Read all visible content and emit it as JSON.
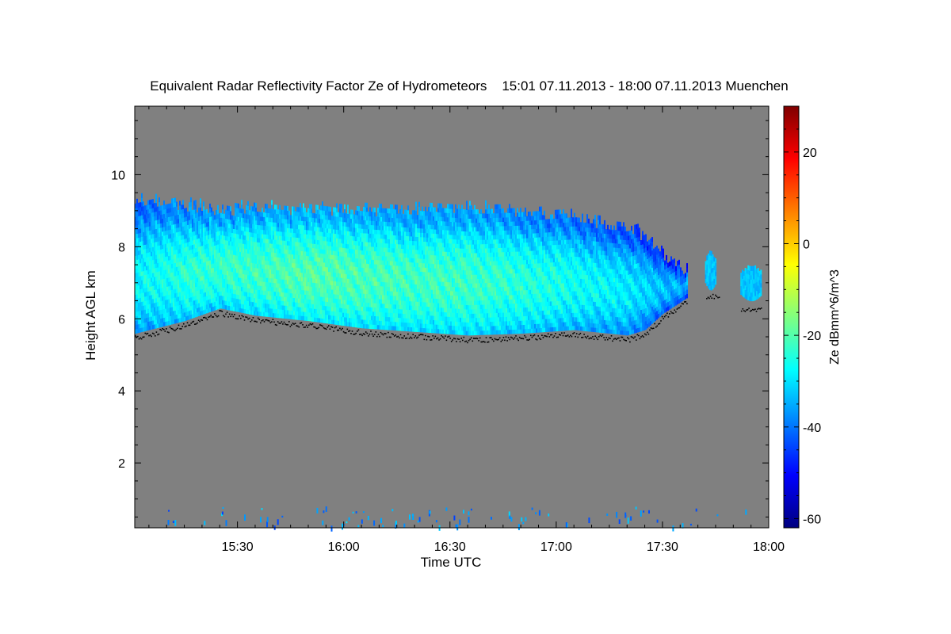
{
  "chart_data": {
    "type": "heatmap",
    "title": "Equivalent Radar Reflectivity Factor Ze of Hydrometeors    15:01 07.11.2013 - 18:00 07.11.2013 Muenchen",
    "xlabel": "Time UTC",
    "ylabel": "Height AGL km",
    "colorbar_label": "Ze dBmm^6/m^3",
    "x_range": [
      "15:01",
      "18:00"
    ],
    "ylim": [
      0.2,
      11.9
    ],
    "x_ticks": [
      {
        "label": "15:30",
        "minutes": 30
      },
      {
        "label": "16:00",
        "minutes": 60
      },
      {
        "label": "16:30",
        "minutes": 90
      },
      {
        "label": "17:00",
        "minutes": 120
      },
      {
        "label": "17:30",
        "minutes": 150
      },
      {
        "label": "18:00",
        "minutes": 180
      }
    ],
    "y_ticks": [
      {
        "label": "2",
        "value": 2
      },
      {
        "label": "4",
        "value": 4
      },
      {
        "label": "6",
        "value": 6
      },
      {
        "label": "8",
        "value": 8
      },
      {
        "label": "10",
        "value": 10
      }
    ],
    "colorbar_range": [
      -62,
      30
    ],
    "colorbar_ticks": [
      {
        "label": "-60",
        "value": -60
      },
      {
        "label": "-40",
        "value": -40
      },
      {
        "label": "-20",
        "value": -20
      },
      {
        "label": "0",
        "value": 0
      },
      {
        "label": "20",
        "value": 20
      }
    ],
    "background_color": "#808080",
    "colormap": [
      "#00007f",
      "#0000ff",
      "#0080ff",
      "#00ffff",
      "#80ff80",
      "#ffff00",
      "#ff8000",
      "#ff0000",
      "#7f0000"
    ],
    "cloud_layer": {
      "description_points": [
        {
          "t": 1,
          "base_km": 5.6,
          "top_km": 9.3,
          "core_ze": -28
        },
        {
          "t": 15,
          "base_km": 5.95,
          "top_km": 9.1,
          "core_ze": -24
        },
        {
          "t": 25,
          "base_km": 6.3,
          "top_km": 9.0,
          "core_ze": -23
        },
        {
          "t": 35,
          "base_km": 6.1,
          "top_km": 9.05,
          "core_ze": -22
        },
        {
          "t": 50,
          "base_km": 5.95,
          "top_km": 9.0,
          "core_ze": -20
        },
        {
          "t": 65,
          "base_km": 5.75,
          "top_km": 9.0,
          "core_ze": -21
        },
        {
          "t": 80,
          "base_km": 5.65,
          "top_km": 9.0,
          "core_ze": -22
        },
        {
          "t": 95,
          "base_km": 5.55,
          "top_km": 9.05,
          "core_ze": -22
        },
        {
          "t": 110,
          "base_km": 5.6,
          "top_km": 8.95,
          "core_ze": -24
        },
        {
          "t": 125,
          "base_km": 5.7,
          "top_km": 8.75,
          "core_ze": -26
        },
        {
          "t": 140,
          "base_km": 5.55,
          "top_km": 8.5,
          "core_ze": -29
        },
        {
          "t": 145,
          "base_km": 5.7,
          "top_km": 8.25,
          "core_ze": -31
        },
        {
          "t": 150,
          "base_km": 6.15,
          "top_km": 7.75,
          "core_ze": -33
        },
        {
          "t": 157,
          "base_km": 6.6,
          "top_km": 7.3,
          "core_ze": -35
        }
      ],
      "small_patches": [
        {
          "t_start": 162,
          "t_end": 165,
          "base_km": 6.8,
          "top_km": 7.8
        },
        {
          "t_start": 172,
          "t_end": 178,
          "base_km": 6.5,
          "top_km": 7.4
        }
      ],
      "cloud_base_dots_color": "#000000"
    }
  }
}
